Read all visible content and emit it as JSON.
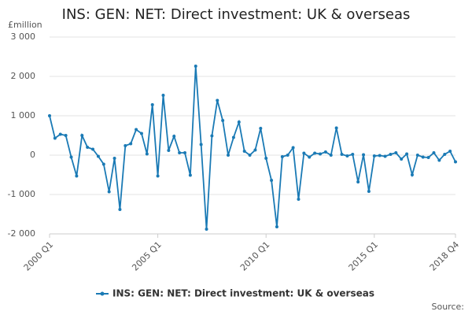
{
  "chart_data": {
    "type": "line",
    "title": "INS: GEN: NET: Direct investment: UK & overseas",
    "y_label": "£million",
    "source": "Source:",
    "categories": [
      "2000 Q1",
      null,
      null,
      null,
      null,
      null,
      null,
      null,
      null,
      null,
      null,
      null,
      null,
      null,
      null,
      null,
      null,
      null,
      null,
      null,
      "2005 Q1",
      null,
      null,
      null,
      null,
      null,
      null,
      null,
      null,
      null,
      null,
      null,
      null,
      null,
      null,
      null,
      null,
      null,
      null,
      null,
      "2010 Q1",
      null,
      null,
      null,
      null,
      null,
      null,
      null,
      null,
      null,
      null,
      null,
      null,
      null,
      null,
      null,
      null,
      null,
      null,
      null,
      "2015 Q1",
      null,
      null,
      null,
      null,
      null,
      null,
      null,
      null,
      null,
      null,
      null,
      null,
      null,
      null,
      "2018 Q4"
    ],
    "series": [
      {
        "name": "INS: GEN: NET: Direct investment: UK & overseas",
        "color": "#1a7ab5",
        "values": [
          1000,
          430,
          530,
          500,
          -50,
          -530,
          500,
          200,
          150,
          -30,
          -230,
          -930,
          -80,
          -1380,
          240,
          290,
          650,
          550,
          30,
          1280,
          -530,
          1520,
          120,
          480,
          60,
          60,
          -510,
          2260,
          270,
          -1880,
          490,
          1390,
          880,
          0,
          450,
          840,
          100,
          0,
          130,
          680,
          -80,
          -640,
          -1820,
          -40,
          0,
          190,
          -1120,
          50,
          -50,
          50,
          30,
          80,
          0,
          690,
          20,
          -20,
          20,
          -680,
          10,
          -920,
          -20,
          -10,
          -30,
          20,
          60,
          -100,
          30,
          -500,
          0,
          -50,
          -60,
          60,
          -130,
          20,
          100,
          -170
        ]
      }
    ],
    "ylim": [
      -2000,
      3000
    ],
    "yticks": [
      {
        "value": -2000,
        "label": "-2 000"
      },
      {
        "value": -1000,
        "label": "-1 000"
      },
      0,
      {
        "value": 1000,
        "label": "1 000"
      },
      {
        "value": 2000,
        "label": "2 000"
      },
      {
        "value": 3000,
        "label": "3 000"
      }
    ],
    "grid": true
  }
}
